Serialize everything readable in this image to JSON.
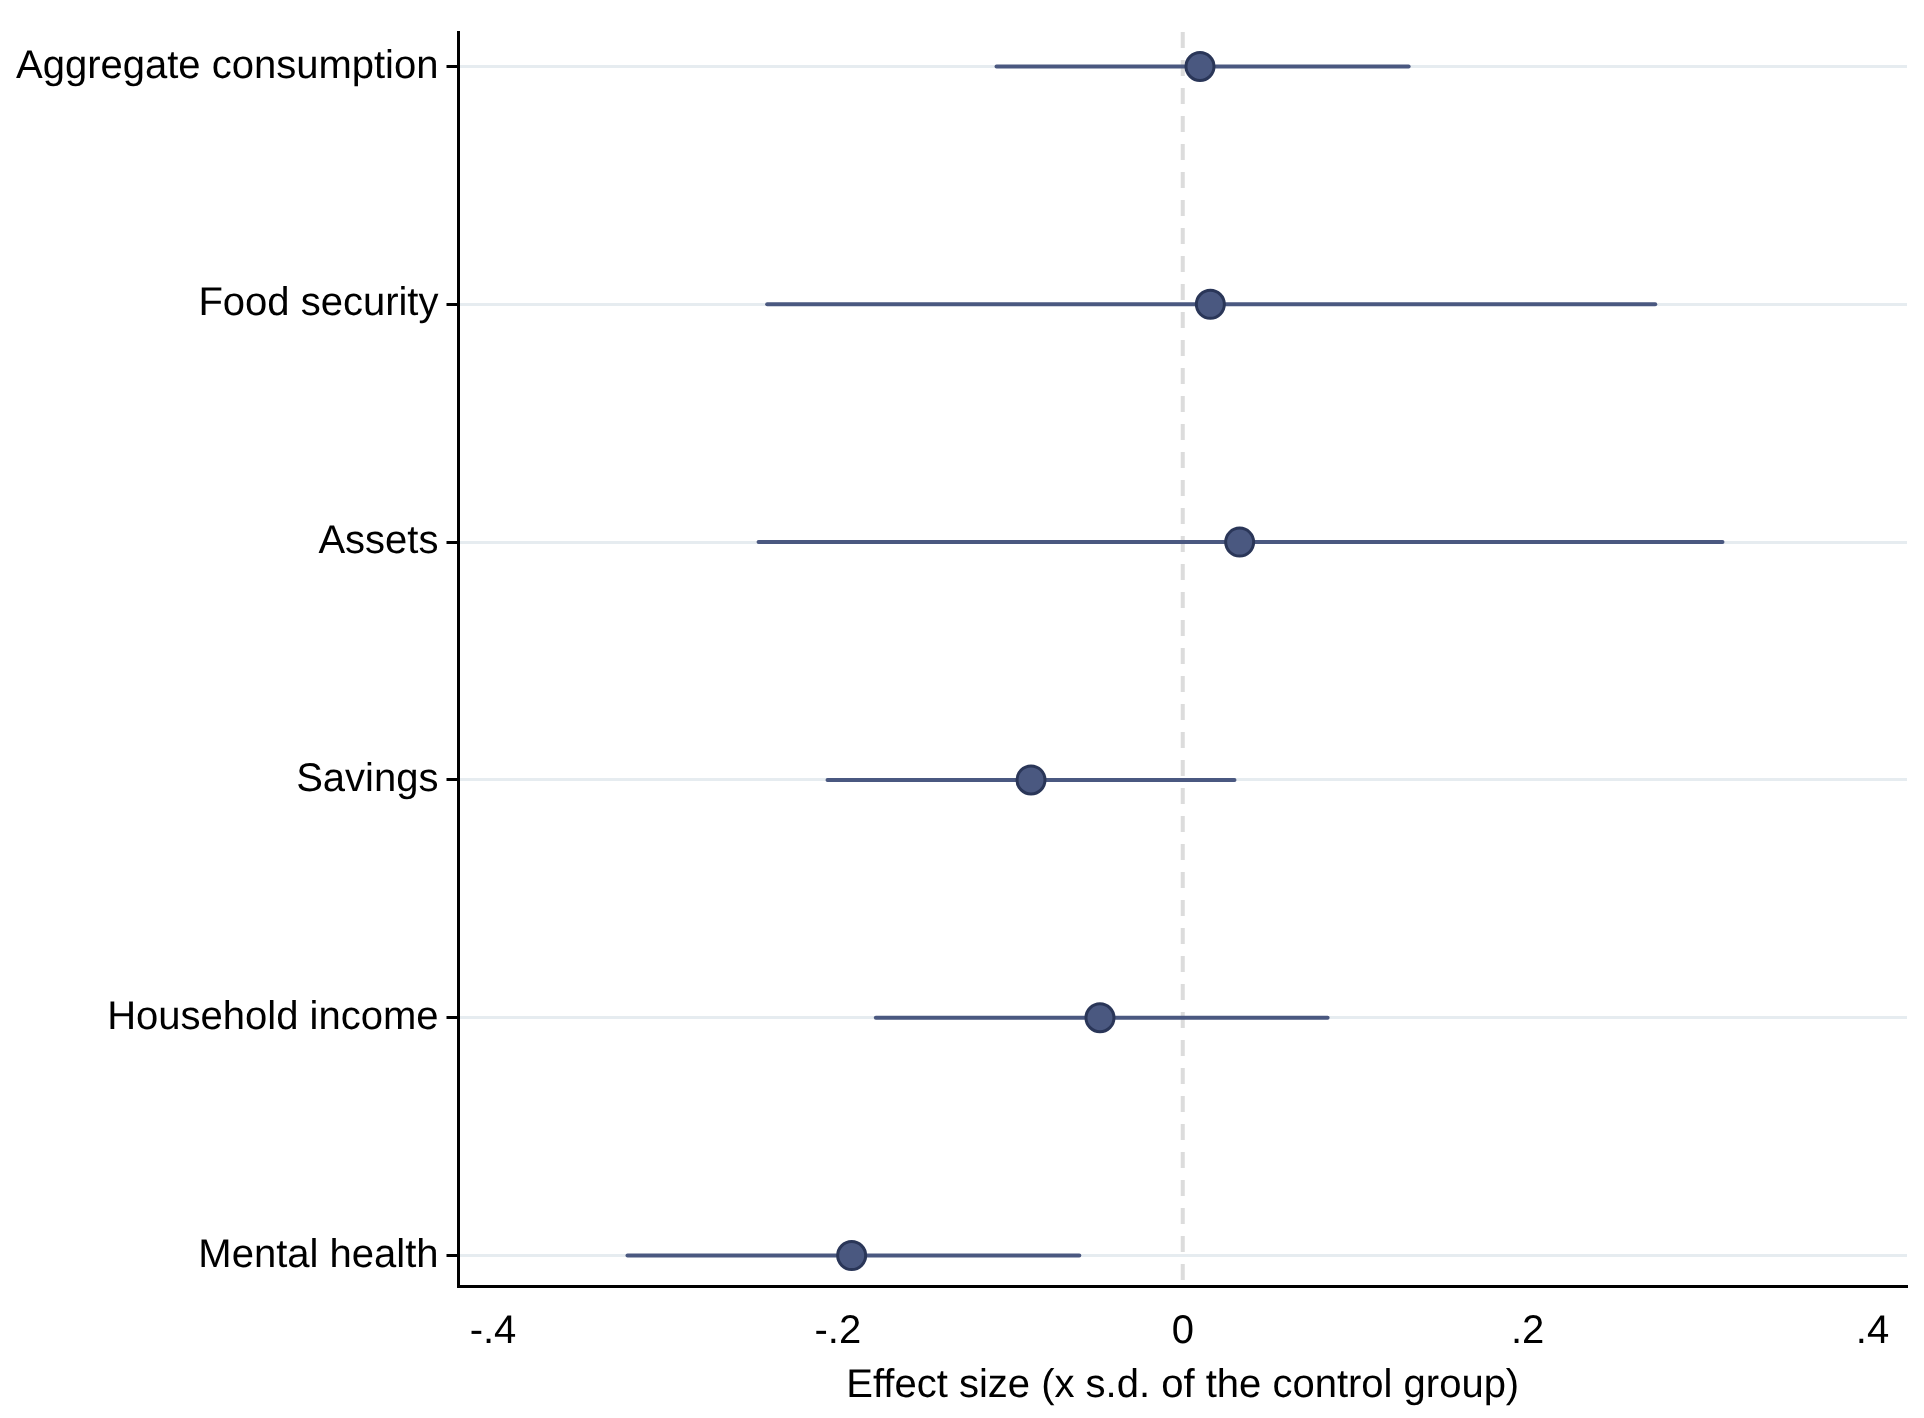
{
  "chart_data": {
    "type": "scatter",
    "orientation": "horizontal",
    "xlabel": "Effect size (x s.d. of the control group)",
    "categories": [
      "Aggregate consumption",
      "Food security",
      "Assets",
      "Savings",
      "Household income",
      "Mental health"
    ],
    "values": [
      0.01,
      0.016,
      0.033,
      -0.088,
      -0.048,
      -0.192
    ],
    "errors": [
      [
        -0.108,
        0.131
      ],
      [
        -0.241,
        0.274
      ],
      [
        -0.246,
        0.313
      ],
      [
        -0.206,
        0.03
      ],
      [
        -0.178,
        0.084
      ],
      [
        -0.322,
        -0.06
      ]
    ],
    "color": "#4a5880",
    "marker": "circle",
    "xlim": [
      -0.42,
      0.42
    ],
    "xticks": [
      {
        "value": -0.4,
        "label": "-.4"
      },
      {
        "value": -0.2,
        "label": "-.2"
      },
      0,
      {
        "value": 0.2,
        "label": ".2"
      },
      {
        "value": 0.4,
        "label": ".4"
      }
    ],
    "ref_lines": [
      {
        "axis": "x",
        "value": 0,
        "color": "#dcdcdc",
        "line_style": "dashed"
      }
    ],
    "grid": "y",
    "legend": false
  }
}
